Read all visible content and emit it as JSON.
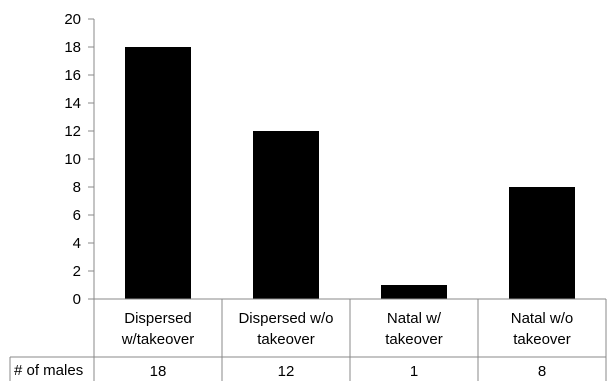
{
  "chart_data": {
    "type": "bar",
    "categories": [
      [
        "Dispersed",
        "w/takeover"
      ],
      [
        "Dispersed w/o",
        "takeover"
      ],
      [
        "Natal w/",
        "takeover"
      ],
      [
        "Natal w/o",
        "takeover"
      ]
    ],
    "series": [
      {
        "name": "# of males",
        "values": [
          18,
          12,
          1,
          8
        ]
      }
    ],
    "table": {
      "row_label": "# of males",
      "cells": [
        "18",
        "12",
        "1",
        "8"
      ]
    },
    "yticks": [
      "0",
      "2",
      "4",
      "6",
      "8",
      "10",
      "12",
      "14",
      "16",
      "18",
      "20"
    ],
    "ylim": [
      0,
      20
    ],
    "title": "",
    "xlabel": "",
    "ylabel": "",
    "grid": false,
    "legend": "none",
    "colors": {
      "bar": "#000000",
      "axis": "#888888"
    }
  }
}
